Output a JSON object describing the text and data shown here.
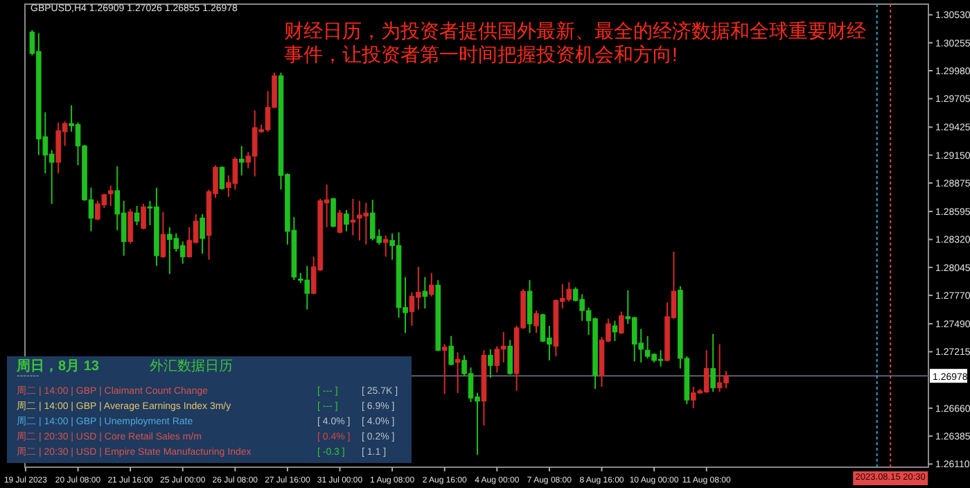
{
  "chart_data": {
    "type": "candlestick",
    "title": "GBPUSD,H4  1.26909 1.27026 1.26855 1.26978",
    "categories": [
      "19 Jul 2023",
      null,
      null,
      null,
      null,
      null,
      null,
      null,
      "20 Jul 08:00",
      null,
      null,
      null,
      null,
      null,
      null,
      null,
      "21 Jul 16:00",
      null,
      null,
      null,
      null,
      null,
      null,
      null,
      "25 Jul 00:00",
      null,
      null,
      null,
      null,
      null,
      null,
      null,
      "26 Jul 08:00",
      null,
      null,
      null,
      null,
      null,
      null,
      null,
      "27 Jul 16:00",
      null,
      null,
      null,
      null,
      null,
      null,
      null,
      "31 Jul 00:00",
      null,
      null,
      null,
      null,
      null,
      null,
      null,
      "1 Aug 08:00",
      null,
      null,
      null,
      null,
      null,
      null,
      null,
      "2 Aug 16:00",
      null,
      null,
      null,
      null,
      null,
      null,
      null,
      "4 Aug 00:00",
      null,
      null,
      null,
      null,
      null,
      null,
      null,
      "7 Aug 08:00",
      null,
      null,
      null,
      null,
      null,
      null,
      null,
      "8 Aug 16:00",
      null,
      null,
      null,
      null,
      null,
      null,
      null,
      "10 Aug 00:00",
      null,
      null,
      null,
      null,
      null,
      null,
      null,
      "11 Aug 08:00",
      null,
      null,
      null,
      null,
      null,
      null,
      null,
      null,
      null,
      null,
      null,
      null,
      null,
      null,
      null,
      null,
      null,
      null,
      null,
      null,
      null,
      null,
      null,
      null,
      null,
      null,
      null,
      null,
      null,
      null,
      null,
      null,
      null
    ],
    "ohlc": [
      null,
      [
        1.3036,
        1.3038,
        1.3013,
        1.3015
      ],
      [
        1.3017,
        1.3035,
        1.2915,
        1.2931
      ],
      [
        1.2933,
        1.2957,
        1.2897,
        1.2915
      ],
      [
        1.2916,
        1.292,
        1.2867,
        1.2908
      ],
      [
        1.2908,
        1.2947,
        1.2897,
        1.2939
      ],
      [
        1.2938,
        1.2948,
        1.2924,
        1.2946
      ],
      [
        1.2946,
        1.2964,
        1.2938,
        1.2944
      ],
      [
        1.2945,
        1.2947,
        1.2905,
        1.2924
      ],
      [
        1.2924,
        1.2925,
        1.287,
        1.2871
      ],
      [
        1.2871,
        1.2883,
        1.284,
        1.2853
      ],
      [
        1.2852,
        1.287,
        1.2851,
        1.2867
      ],
      [
        1.2866,
        1.2877,
        1.2863,
        1.2876
      ],
      [
        1.2877,
        1.2885,
        1.2865,
        1.288
      ],
      [
        1.288,
        1.2904,
        1.2841,
        1.2857
      ],
      [
        1.2858,
        1.287,
        1.2816,
        1.283
      ],
      [
        1.283,
        1.2862,
        1.2828,
        1.2859
      ],
      [
        1.2858,
        1.2865,
        1.2846,
        1.285
      ],
      [
        1.2843,
        1.2867,
        1.2842,
        1.2864
      ],
      [
        1.2864,
        1.287,
        1.2846,
        1.2863
      ],
      [
        1.2864,
        1.2883,
        1.2806,
        1.2816
      ],
      [
        1.2815,
        1.2859,
        1.2814,
        1.2837
      ],
      [
        1.2837,
        1.2844,
        1.2798,
        1.2832
      ],
      [
        1.2833,
        1.2838,
        1.282,
        1.2823
      ],
      [
        1.2826,
        1.283,
        1.2808,
        1.2815
      ],
      [
        1.2815,
        1.2844,
        1.2814,
        1.2831
      ],
      [
        1.2829,
        1.2857,
        1.2828,
        1.285
      ],
      [
        1.2853,
        1.2857,
        1.2818,
        1.2833
      ],
      [
        1.2836,
        1.2881,
        1.2812,
        1.2879
      ],
      [
        1.2877,
        1.2905,
        1.2873,
        1.2903
      ],
      [
        1.2903,
        1.2904,
        1.2881,
        1.2882
      ],
      [
        1.2883,
        1.2895,
        1.2874,
        1.2888
      ],
      [
        1.2887,
        1.2913,
        1.2881,
        1.2911
      ],
      [
        1.2911,
        1.2924,
        1.2895,
        1.2908
      ],
      [
        1.2908,
        1.2918,
        1.2902,
        1.2914
      ],
      [
        1.2914,
        1.2959,
        1.2894,
        1.2942
      ],
      [
        1.2938,
        1.2945,
        1.2937,
        1.294
      ],
      [
        1.294,
        1.2978,
        1.2938,
        1.2962
      ],
      [
        1.2962,
        1.2996,
        1.2961,
        1.2993
      ],
      [
        1.2993,
        1.2996,
        1.2881,
        1.2895
      ],
      [
        1.2896,
        1.2897,
        1.2827,
        1.284
      ],
      [
        1.2841,
        1.2854,
        1.2792,
        1.2795
      ],
      [
        1.2793,
        1.2799,
        1.2789,
        1.2792
      ],
      [
        1.2792,
        1.2806,
        1.2763,
        1.2779
      ],
      [
        1.2779,
        1.2815,
        1.2778,
        1.2805
      ],
      [
        1.2802,
        1.2872,
        1.2801,
        1.287
      ],
      [
        1.2868,
        1.2886,
        1.2844,
        1.2871
      ],
      [
        1.2872,
        1.2873,
        1.2844,
        1.2845
      ],
      [
        1.2839,
        1.2861,
        1.2838,
        1.2858
      ],
      [
        1.2857,
        1.2861,
        1.284,
        1.2847
      ],
      [
        1.2849,
        1.2872,
        1.2836,
        1.2851
      ],
      [
        1.2853,
        1.287,
        1.2831,
        1.2856
      ],
      [
        1.2855,
        1.2868,
        1.2827,
        1.2858
      ],
      [
        1.2858,
        1.2871,
        1.2831,
        1.2833
      ],
      [
        1.2835,
        1.2842,
        1.2827,
        1.2829
      ],
      [
        1.2829,
        1.2836,
        1.2815,
        1.2832
      ],
      [
        1.2831,
        1.2838,
        1.2812,
        1.2826
      ],
      [
        1.2826,
        1.2839,
        1.2755,
        1.2765
      ],
      [
        1.2765,
        1.2795,
        1.274,
        1.276
      ],
      [
        1.2761,
        1.278,
        1.2747,
        1.2776
      ],
      [
        1.2775,
        1.2805,
        1.2763,
        1.278
      ],
      [
        1.2781,
        1.2795,
        1.2764,
        1.2776
      ],
      [
        1.2778,
        1.2799,
        1.2776,
        1.2787
      ],
      [
        1.2787,
        1.2792,
        1.2722,
        1.2723
      ],
      [
        1.2723,
        1.2729,
        1.268,
        1.2726
      ],
      [
        1.2727,
        1.2737,
        1.2708,
        1.2709
      ],
      [
        1.2711,
        1.2721,
        1.2681,
        1.2714
      ],
      [
        1.2713,
        1.2718,
        1.2698,
        1.27
      ],
      [
        1.27,
        1.2706,
        1.2672,
        1.2676
      ],
      [
        1.2677,
        1.2681,
        1.262,
        1.2673
      ],
      [
        1.2673,
        1.2723,
        1.2649,
        1.2718
      ],
      [
        1.2718,
        1.2724,
        1.2696,
        1.2708
      ],
      [
        1.2708,
        1.2727,
        1.2701,
        1.2724
      ],
      [
        1.2724,
        1.2741,
        1.2711,
        1.2727
      ],
      [
        1.2727,
        1.2733,
        1.2699,
        1.27
      ],
      [
        1.27,
        1.2747,
        1.2683,
        1.2745
      ],
      [
        1.2745,
        1.2783,
        1.2744,
        1.2781
      ],
      [
        1.2781,
        1.2792,
        1.274,
        1.2749
      ],
      [
        1.2747,
        1.2762,
        1.274,
        1.2759
      ],
      [
        1.2758,
        1.2759,
        1.2731,
        1.2732
      ],
      [
        1.2735,
        1.2747,
        1.2713,
        1.2729
      ],
      [
        1.2727,
        1.2773,
        1.2717,
        1.2772
      ],
      [
        1.2771,
        1.2788,
        1.2764,
        1.2774
      ],
      [
        1.2773,
        1.279,
        1.2771,
        1.2783
      ],
      [
        1.2783,
        1.2785,
        1.2771,
        1.2772
      ],
      [
        1.2773,
        1.2778,
        1.2752,
        1.2762
      ],
      [
        1.2762,
        1.2765,
        1.2738,
        1.2752
      ],
      [
        1.2754,
        1.2755,
        1.2685,
        1.2698
      ],
      [
        1.2698,
        1.2736,
        1.2687,
        1.2733
      ],
      [
        1.2732,
        1.2754,
        1.2731,
        1.2749
      ],
      [
        1.2747,
        1.2752,
        1.2732,
        1.2741
      ],
      [
        1.274,
        1.2761,
        1.2739,
        1.2757
      ],
      [
        1.2756,
        1.2782,
        1.2749,
        1.2754
      ],
      [
        1.2755,
        1.2756,
        1.2712,
        1.2729
      ],
      [
        1.273,
        1.2744,
        1.2711,
        1.2724
      ],
      [
        1.2723,
        1.2737,
        1.2715,
        1.2717
      ],
      [
        1.2719,
        1.272,
        1.2711,
        1.2713
      ],
      [
        1.2714,
        1.2723,
        1.2707,
        1.2713
      ],
      [
        1.2713,
        1.277,
        1.2712,
        1.2756
      ],
      [
        1.2755,
        1.282,
        1.2754,
        1.2781
      ],
      [
        1.2782,
        1.2786,
        1.2705,
        1.2715
      ],
      [
        1.2715,
        1.2717,
        1.267,
        1.2674
      ],
      [
        1.2674,
        1.2687,
        1.2666,
        1.2681
      ],
      [
        1.2681,
        1.2685,
        1.268,
        1.2683
      ],
      [
        1.2682,
        1.2723,
        1.2681,
        1.2705
      ],
      [
        1.2705,
        1.2739,
        1.2682,
        1.2686
      ],
      [
        1.2686,
        1.2729,
        1.2682,
        1.2691
      ],
      [
        1.26909,
        1.27026,
        1.26855,
        1.26978
      ],
      null,
      null,
      null,
      null,
      null,
      null,
      null,
      null,
      null,
      null,
      null,
      null,
      null,
      null,
      null,
      null,
      null,
      null,
      null,
      null,
      null,
      null,
      null,
      null,
      null,
      null,
      null,
      null,
      null,
      null
    ],
    "ylim": [
      1.26079,
      1.30635
    ],
    "yticks": [
      {
        "value": 1.3053,
        "label": "1.30530"
      },
      1.30255,
      {
        "value": 1.2998,
        "label": "1.29980"
      },
      1.29705,
      1.29425,
      {
        "value": 1.2915,
        "label": "1.29150"
      },
      1.28875,
      1.28595,
      {
        "value": 1.2832,
        "label": "1.28320"
      },
      1.28045,
      {
        "value": 1.2777,
        "label": "1.27770"
      },
      {
        "value": 1.2749,
        "label": "1.27490"
      },
      1.27215,
      {
        "value": 1.2666,
        "label": "1.26660"
      },
      1.26385,
      {
        "value": 1.2611,
        "label": "1.26110"
      }
    ],
    "ref_lines": [
      {
        "axis": "y",
        "value": 1.26978,
        "label": "1.26978",
        "color": "#5b6270",
        "line_style": "solid"
      }
    ],
    "annotations": [
      "财经日历，为投资者提供国外最新、最全的经济数据和全球重要财经事件，让投资者第一时间把握投资机会和方向!",
      "周日，8月 13",
      "外汇数据日历",
      "-------",
      "周二 | 14:00 | GBP | Claimant Count Change",
      "[ --- ]",
      "[ 25.7K ]",
      "周二 | 14:00 | GBP | Average Earnings Index 3m/y",
      "[ --- ]",
      "[ 6.9% ]",
      "周二 | 14:00 | GBP | Unemployment Rate",
      "[ 4.0% ]",
      "[ 4.0% ]",
      "周二 | 20:30 | USD | Core Retail Sales m/m",
      "[ 0.4% ]",
      "[ 0.2% ]",
      "周二 | 20:30 | USD | Empire State Manufacturing Index",
      "[ -0.3 ]",
      "[ 1.1 ]",
      "2023.08.15 20:30"
    ]
  }
}
